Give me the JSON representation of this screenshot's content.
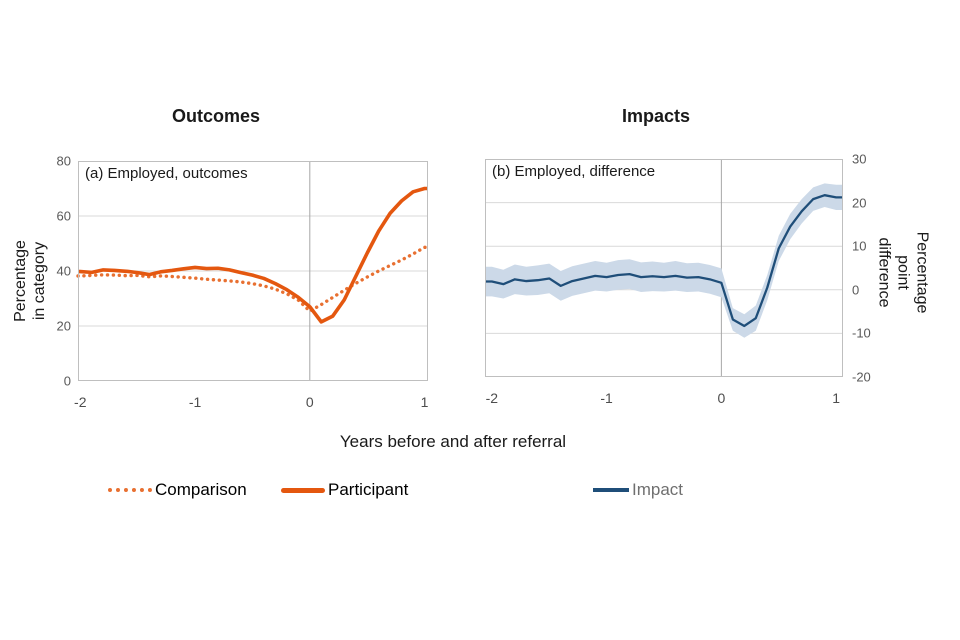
{
  "figure": {
    "xlabel": "Years before and after referral",
    "legend": [
      {
        "label": "Comparison",
        "style": "dotted",
        "color": "#e87031",
        "label_color": "#1a1a1a"
      },
      {
        "label": "Participant",
        "style": "solid",
        "color": "#e4570f",
        "label_color": "#1a1a1a"
      },
      {
        "label": "Impact",
        "style": "solid",
        "color": "#1f4e79",
        "label_color": "#6f6f6f"
      }
    ],
    "colors": {
      "gridline": "#d9d9d9",
      "plot_border": "#bfbfbf",
      "zero_guide": "#a6a6a6",
      "tick_text": "#595959",
      "band": "#ccd9e8"
    }
  },
  "chart_data": [
    {
      "type": "line",
      "title": "Outcomes",
      "panel_label": "(a) Employed, outcomes",
      "ylabel_lines": [
        "Percentage",
        "in category"
      ],
      "axis_side": "left",
      "ylim": [
        0,
        80
      ],
      "yticks": [
        0,
        20,
        40,
        60,
        80
      ],
      "xlim": [
        -2.02,
        1.03
      ],
      "xticks": [
        -2,
        -1,
        0,
        1
      ],
      "x_guide": 0,
      "grid": true,
      "x": [
        -2.0,
        -1.9,
        -1.8,
        -1.7,
        -1.6,
        -1.5,
        -1.4,
        -1.3,
        -1.2,
        -1.1,
        -1.0,
        -0.9,
        -0.8,
        -0.7,
        -0.6,
        -0.5,
        -0.4,
        -0.3,
        -0.2,
        -0.1,
        0.0,
        0.1,
        0.2,
        0.3,
        0.4,
        0.5,
        0.6,
        0.7,
        0.8,
        0.9,
        1.0
      ],
      "series": [
        {
          "name": "Comparison",
          "style": "dotted",
          "color": "#e87031",
          "width": 3.4,
          "values": [
            38.2,
            38.4,
            38.6,
            38.5,
            38.3,
            38.4,
            37.9,
            38.2,
            38.0,
            37.7,
            37.4,
            37.0,
            36.7,
            36.4,
            36.0,
            35.4,
            34.6,
            33.4,
            31.7,
            29.4,
            25.4,
            27.8,
            30.4,
            33.0,
            35.5,
            37.8,
            40.0,
            42.0,
            44.0,
            46.2,
            48.6
          ]
        },
        {
          "name": "Participant",
          "style": "solid",
          "color": "#e4570f",
          "width": 3.6,
          "values": [
            39.8,
            39.5,
            40.4,
            40.2,
            39.9,
            39.4,
            38.7,
            39.7,
            40.2,
            40.8,
            41.3,
            40.9,
            41.0,
            40.4,
            39.4,
            38.5,
            37.3,
            35.4,
            33.2,
            30.4,
            27.0,
            21.5,
            23.6,
            29.5,
            38.0,
            46.5,
            54.5,
            61.0,
            65.5,
            68.8,
            70.0
          ]
        }
      ]
    },
    {
      "type": "line",
      "title": "Impacts",
      "panel_label": "(b) Employed, difference",
      "ylabel_lines": [
        "Percentage",
        "point",
        "difference"
      ],
      "axis_side": "right",
      "ylim": [
        -20,
        30
      ],
      "yticks": [
        -20,
        -10,
        0,
        10,
        20,
        30
      ],
      "xlim": [
        -2.06,
        1.06
      ],
      "xticks": [
        -2,
        -1,
        0,
        1
      ],
      "x_guide": 0,
      "grid": true,
      "x": [
        -2.0,
        -1.9,
        -1.8,
        -1.7,
        -1.6,
        -1.5,
        -1.4,
        -1.3,
        -1.2,
        -1.1,
        -1.0,
        -0.9,
        -0.8,
        -0.7,
        -0.6,
        -0.5,
        -0.4,
        -0.3,
        -0.2,
        -0.1,
        0.0,
        0.1,
        0.2,
        0.3,
        0.4,
        0.5,
        0.6,
        0.7,
        0.8,
        0.9,
        1.0
      ],
      "series": [
        {
          "name": "Impact",
          "style": "solid",
          "color": "#1f4e79",
          "width": 2.3,
          "band_color": "#ccd9e8",
          "values": [
            1.9,
            1.3,
            2.4,
            2.0,
            2.2,
            2.6,
            0.9,
            2.0,
            2.6,
            3.2,
            2.9,
            3.4,
            3.6,
            2.9,
            3.1,
            2.9,
            3.2,
            2.8,
            2.9,
            2.4,
            1.6,
            -6.8,
            -8.3,
            -6.5,
            0.5,
            9.5,
            14.5,
            18.0,
            20.8,
            21.7,
            21.2
          ],
          "band_upper": [
            5.3,
            4.6,
            5.8,
            5.3,
            5.6,
            6.0,
            4.3,
            5.4,
            6.0,
            6.6,
            6.2,
            6.8,
            7.0,
            6.3,
            6.5,
            6.2,
            6.6,
            6.1,
            6.2,
            5.7,
            4.9,
            -4.2,
            -5.6,
            -3.6,
            3.4,
            12.4,
            17.4,
            20.8,
            23.5,
            24.4,
            24.1
          ],
          "band_lower": [
            -1.5,
            -2.0,
            -1.0,
            -1.3,
            -1.2,
            -0.8,
            -2.5,
            -1.4,
            -0.8,
            -0.2,
            -0.4,
            0.0,
            0.2,
            -0.5,
            -0.3,
            -0.4,
            -0.2,
            -0.5,
            -0.4,
            -0.9,
            -1.7,
            -9.4,
            -11.0,
            -9.4,
            -2.4,
            6.6,
            11.6,
            15.2,
            18.1,
            19.0,
            18.3
          ]
        }
      ]
    }
  ]
}
